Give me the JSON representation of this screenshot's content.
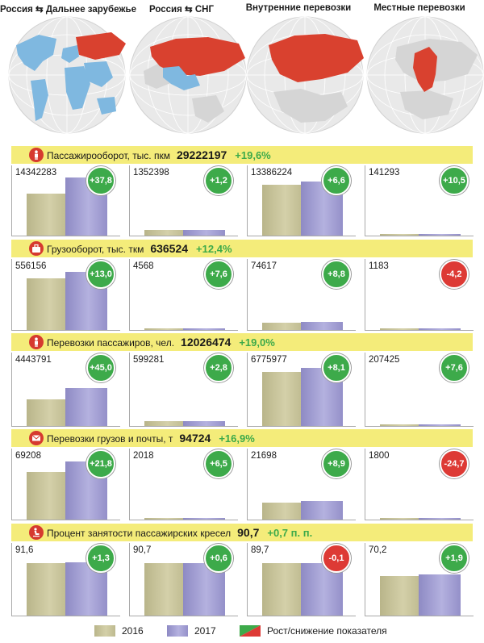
{
  "columns": [
    {
      "title_a": "Россия",
      "arrow": "⇆",
      "title_b": "Дальнее зарубежье"
    },
    {
      "title_a": "Россия",
      "arrow": "⇆",
      "title_b": "СНГ"
    },
    {
      "title_a": "Внутренние перевозки",
      "arrow": "",
      "title_b": ""
    },
    {
      "title_a": "Местные перевозки",
      "arrow": "",
      "title_b": ""
    }
  ],
  "colors": {
    "bar_2016": "#c9c59c",
    "bar_2017": "#a7a3d6",
    "growth": "#3daa4a",
    "decline": "#dd3a35",
    "band": "#f4ec7a",
    "map_highlight_russia": "#d9412f",
    "map_highlight_foreign": "#7fb8e0"
  },
  "chart_data": [
    {
      "type": "bar",
      "title": "Пассажирооборот, тыс. пкм",
      "total": "29222197",
      "growth": "+19,6%",
      "icon": "passenger-icon",
      "panels": [
        {
          "label": "14342283",
          "change": "+37,8",
          "direction": "up",
          "values": [
            10407426,
            14342283
          ]
        },
        {
          "label": "1352398",
          "change": "+1,2",
          "direction": "up",
          "values": [
            1336362,
            1352398
          ]
        },
        {
          "label": "13386224",
          "change": "+6,6",
          "direction": "up",
          "values": [
            12557434,
            13386224
          ]
        },
        {
          "label": "141293",
          "change": "+10,5",
          "direction": "up",
          "values": [
            127867,
            141293
          ]
        }
      ]
    },
    {
      "type": "bar",
      "title": "Грузооборот, тыс. ткм",
      "total": "636524",
      "growth": "+12,4%",
      "icon": "cargo-icon",
      "panels": [
        {
          "label": "556156",
          "change": "+13,0",
          "direction": "up",
          "values": [
            492173,
            556156
          ]
        },
        {
          "label": "4568",
          "change": "+7,6",
          "direction": "up",
          "values": [
            4245,
            4568
          ]
        },
        {
          "label": "74617",
          "change": "+8,8",
          "direction": "up",
          "values": [
            68582,
            74617
          ]
        },
        {
          "label": "1183",
          "change": "-4,2",
          "direction": "down",
          "values": [
            1235,
            1183
          ]
        }
      ]
    },
    {
      "type": "bar",
      "title": "Перевозки пассажиров, чел.",
      "total": "12026474",
      "growth": "+19,0%",
      "icon": "passenger-icon",
      "panels": [
        {
          "label": "4443791",
          "change": "+45,0",
          "direction": "up",
          "values": [
            3064683,
            4443791
          ]
        },
        {
          "label": "599281",
          "change": "+2,8",
          "direction": "up",
          "values": [
            582958,
            599281
          ]
        },
        {
          "label": "6775977",
          "change": "+8,1",
          "direction": "up",
          "values": [
            6268249,
            6775977
          ]
        },
        {
          "label": "207425",
          "change": "+7,6",
          "direction": "up",
          "values": [
            192774,
            207425
          ]
        }
      ]
    },
    {
      "type": "bar",
      "title": "Перевозки грузов и почты, т",
      "total": "94724",
      "growth": "+16,9%",
      "icon": "mail-icon",
      "panels": [
        {
          "label": "69208",
          "change": "+21,8",
          "direction": "up",
          "values": [
            56821,
            69208
          ]
        },
        {
          "label": "2018",
          "change": "+6,5",
          "direction": "up",
          "values": [
            1895,
            2018
          ]
        },
        {
          "label": "21698",
          "change": "+8,9",
          "direction": "up",
          "values": [
            19925,
            21698
          ]
        },
        {
          "label": "1800",
          "change": "-24,7",
          "direction": "down",
          "values": [
            2390,
            1800
          ]
        }
      ]
    },
    {
      "type": "bar",
      "title": "Процент занятости пассажирских кресел",
      "total": "90,7",
      "growth": "+0,7 п. п.",
      "icon": "seat-icon",
      "panels": [
        {
          "label": "91,6",
          "change": "+1,3",
          "direction": "up",
          "values": [
            90.3,
            91.6
          ]
        },
        {
          "label": "90,7",
          "change": "+0,6",
          "direction": "up",
          "values": [
            90.1,
            90.7
          ]
        },
        {
          "label": "89,7",
          "change": "-0,1",
          "direction": "down",
          "values": [
            89.8,
            89.7
          ]
        },
        {
          "label": "70,2",
          "change": "+1,9",
          "direction": "up",
          "values": [
            68.3,
            70.2
          ]
        }
      ]
    }
  ],
  "legend": [
    {
      "label": "2016",
      "color": "#c9c59c"
    },
    {
      "label": "2017",
      "color": "#a7a3d6"
    },
    {
      "label": "Рост/снижение показателя",
      "color": "#3daa4a"
    }
  ]
}
